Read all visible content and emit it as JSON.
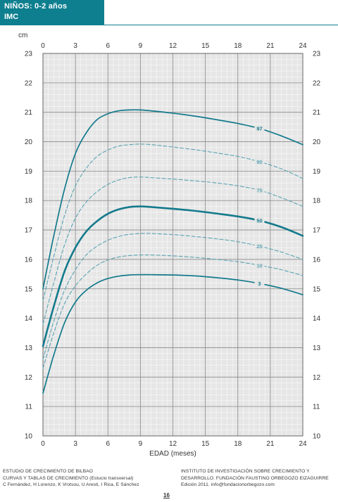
{
  "header": {
    "title_line1": "NIÑOS: 0-2 años",
    "title_line2": "IMC"
  },
  "colors": {
    "accent": "#0e7f8f",
    "curve_solid": "#137a8c",
    "curve_dashed": "#5aa4b3",
    "plot_background": "#e6e6e6"
  },
  "chart_data": {
    "type": "line",
    "title": "",
    "xlabel": "EDAD (meses)",
    "ylabel": "cm",
    "xlim": [
      0,
      24
    ],
    "ylim": [
      10,
      23
    ],
    "xticks": [
      0,
      3,
      6,
      9,
      12,
      15,
      18,
      21,
      24
    ],
    "yticks": [
      10,
      11,
      12,
      13,
      14,
      15,
      16,
      17,
      18,
      19,
      20,
      21,
      22,
      23
    ],
    "grid": true,
    "series": [
      {
        "name": "97",
        "style": "solid",
        "weight": "thin",
        "x": [
          0,
          1,
          2,
          3,
          4,
          5,
          6,
          7,
          8,
          9,
          10,
          12,
          14,
          16,
          18,
          20,
          22,
          24
        ],
        "y": [
          15.0,
          16.8,
          18.4,
          19.6,
          20.3,
          20.75,
          20.95,
          21.05,
          21.08,
          21.08,
          21.05,
          20.97,
          20.87,
          20.75,
          20.62,
          20.45,
          20.2,
          19.9
        ]
      },
      {
        "name": "90",
        "style": "dashed",
        "weight": "thin",
        "x": [
          0,
          1,
          2,
          3,
          4,
          5,
          6,
          7,
          8,
          9,
          10,
          12,
          14,
          16,
          18,
          20,
          22,
          24
        ],
        "y": [
          14.6,
          16.1,
          17.5,
          18.5,
          19.1,
          19.5,
          19.72,
          19.85,
          19.9,
          19.92,
          19.9,
          19.82,
          19.73,
          19.62,
          19.5,
          19.32,
          19.08,
          18.75
        ]
      },
      {
        "name": "75",
        "style": "dashed",
        "weight": "thin",
        "x": [
          0,
          1,
          2,
          3,
          4,
          5,
          6,
          7,
          8,
          9,
          10,
          12,
          14,
          16,
          18,
          20,
          22,
          24
        ],
        "y": [
          13.8,
          15.2,
          16.5,
          17.4,
          17.95,
          18.3,
          18.55,
          18.7,
          18.78,
          18.8,
          18.78,
          18.73,
          18.67,
          18.6,
          18.5,
          18.35,
          18.1,
          17.8
        ]
      },
      {
        "name": "50",
        "style": "solid",
        "weight": "thick",
        "x": [
          0,
          1,
          2,
          3,
          4,
          5,
          6,
          7,
          8,
          9,
          10,
          12,
          14,
          16,
          18,
          20,
          22,
          24
        ],
        "y": [
          13.05,
          14.4,
          15.6,
          16.4,
          16.95,
          17.3,
          17.55,
          17.7,
          17.78,
          17.8,
          17.78,
          17.72,
          17.65,
          17.56,
          17.46,
          17.32,
          17.1,
          16.8
        ]
      },
      {
        "name": "25",
        "style": "dashed",
        "weight": "thin",
        "x": [
          0,
          1,
          2,
          3,
          4,
          5,
          6,
          7,
          8,
          9,
          10,
          12,
          14,
          16,
          18,
          20,
          22,
          24
        ],
        "y": [
          12.6,
          13.9,
          14.95,
          15.65,
          16.15,
          16.45,
          16.65,
          16.78,
          16.85,
          16.88,
          16.88,
          16.84,
          16.78,
          16.7,
          16.6,
          16.45,
          16.25,
          16.0
        ]
      },
      {
        "name": "10",
        "style": "dashed",
        "weight": "thin",
        "x": [
          0,
          1,
          2,
          3,
          4,
          5,
          6,
          7,
          8,
          9,
          10,
          12,
          14,
          16,
          18,
          20,
          22,
          24
        ],
        "y": [
          12.3,
          13.5,
          14.5,
          15.1,
          15.5,
          15.8,
          15.98,
          16.08,
          16.13,
          16.15,
          16.15,
          16.12,
          16.07,
          16.0,
          15.92,
          15.8,
          15.65,
          15.45
        ]
      },
      {
        "name": "3",
        "style": "solid",
        "weight": "thin",
        "x": [
          0,
          1,
          2,
          3,
          4,
          5,
          6,
          7,
          8,
          9,
          10,
          12,
          14,
          16,
          18,
          20,
          22,
          24
        ],
        "y": [
          11.45,
          12.75,
          13.85,
          14.55,
          14.95,
          15.2,
          15.35,
          15.43,
          15.47,
          15.48,
          15.48,
          15.47,
          15.44,
          15.38,
          15.3,
          15.18,
          15.02,
          14.8
        ]
      }
    ]
  },
  "footer": {
    "left_line1": "ESTUDIO DE CRECIMIENTO DE BILBAO",
    "left_line2": "CURVAS Y TABLAS DE CRECIMIENTO (Estucio transversal)",
    "left_line3": "C Fernández, H Lorenzo, K Vrotsou, U Aresti, I Rica, E Sánchez",
    "right_line1": "INSTITUTO DE INVESTIGACIÓN SOBRE CRECIMIENTO Y",
    "right_line2": "DESARROLLO. FUNDACIÓN FAUSTINO ORBEGOZO EIZAGUIRRE",
    "right_line3": "Edición 2011. info@fundacionorbegozo.com"
  },
  "page_number": "16"
}
